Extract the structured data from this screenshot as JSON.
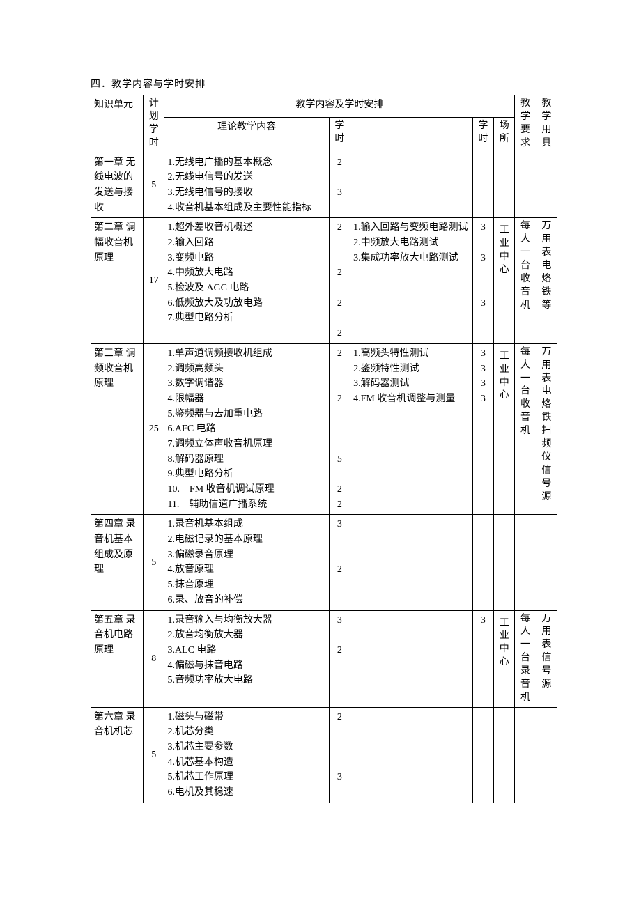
{
  "page_title": "四．教学内容与学时安排",
  "headers": {
    "unit": "知识单元",
    "plan_hours": "计划学时",
    "content_span": "教学内容及学时安排",
    "theory": "理论教学内容",
    "theory_hours": "学时",
    "practice_hours": "学时",
    "place": "场所",
    "req": "教学要求",
    "tool": "教学用具"
  },
  "rows": [
    {
      "unit": "第一章 无线电波的发送与接收",
      "plan": "5",
      "theory": [
        "1.无线电广播的基本概念",
        "2.无线电信号的发送",
        "3.无线电信号的接收",
        "4.收音机基本组成及主要性能指标"
      ],
      "theory_hours": [
        "2",
        "",
        "3",
        ""
      ],
      "practice": [],
      "practice_hours": [],
      "place": "",
      "req": "",
      "tool": ""
    },
    {
      "unit": "第二章 调幅收音机原理",
      "plan": "17",
      "theory": [
        "1.超外差收音机概述",
        "2.输入回路",
        "3.变频电路",
        "4.中频放大电路",
        "5.检波及 AGC 电路",
        "6.低频放大及功放电路",
        "7.典型电路分析"
      ],
      "theory_hours": [
        "2",
        "",
        "",
        "2",
        "",
        "2",
        "",
        "2"
      ],
      "practice": [
        "1.输入回路与变频电路测试",
        "2.中频放大电路测试",
        "3.集成功率放大电路测试"
      ],
      "practice_hours": [
        "3",
        "",
        "3",
        "",
        "",
        "3"
      ],
      "place": "工业中心",
      "req": "每人一台收音机",
      "tool": "万用表电烙铁等"
    },
    {
      "unit": "第三章 调频收音机原理",
      "plan": "25",
      "theory": [
        "1.单声道调频接收机组成",
        "2.调频高频头",
        "3.数字调谐器",
        "4.限幅器",
        "5.鉴频器与去加重电路",
        "6.AFC 电路",
        "7.调频立体声收音机原理",
        "8.解码器原理",
        "9.典型电路分析",
        "10.　FM 收音机调试原理",
        "11.　辅助信道广播系统"
      ],
      "theory_hours": [
        "2",
        "",
        "",
        "2",
        "",
        "",
        "",
        "5",
        "",
        "2",
        "2"
      ],
      "practice": [
        "1.高频头特性测试",
        "2.鉴频特性测试",
        "3.解码器测试",
        "4.FM 收音机调整与测量"
      ],
      "practice_hours": [
        "3",
        "3",
        "3",
        "3"
      ],
      "place": "工业中心",
      "req": "每人一台收音机",
      "tool": "万用表电烙铁扫频仪信号源"
    },
    {
      "unit": "第四章 录音机基本组成及原理",
      "plan": "5",
      "theory": [
        "1.录音机基本组成",
        "2.电磁记录的基本原理",
        "3.偏磁录音原理",
        "4.放音原理",
        "5.抹音原理",
        "6.录、放音的补偿"
      ],
      "theory_hours": [
        "3",
        "",
        "",
        "2"
      ],
      "practice": [],
      "practice_hours": [],
      "place": "",
      "req": "",
      "tool": ""
    },
    {
      "unit": "第五章 录音机电路原理",
      "plan": "8",
      "theory": [
        "1.录音输入与均衡放大器",
        "2.放音均衡放大器",
        "3.ALC 电路",
        "4.偏磁与抹音电路",
        "5.音频功率放大电路"
      ],
      "theory_hours": [
        "3",
        "",
        "2"
      ],
      "practice": [],
      "practice_hours": [
        "3"
      ],
      "place": "工业中心",
      "req": "每人一台录音机",
      "tool": "万用表信号源"
    },
    {
      "unit": "第六章 录音机机芯",
      "plan": "5",
      "theory": [
        "1.磁头与磁带",
        "2.机芯分类",
        "3.机芯主要参数",
        "4.机芯基本构造",
        "5.机芯工作原理",
        "6.电机及其稳速"
      ],
      "theory_hours": [
        "2",
        "",
        "",
        "",
        "3"
      ],
      "practice": [],
      "practice_hours": [],
      "place": "",
      "req": "",
      "tool": ""
    }
  ]
}
